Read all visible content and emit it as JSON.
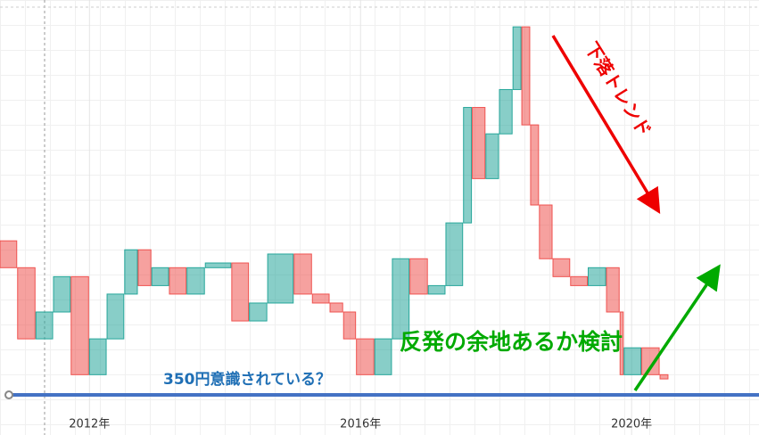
{
  "chart_data": {
    "type": "candlestick",
    "x": [
      2010.68,
      2010.94,
      2011.21,
      2011.47,
      2011.73,
      2012.0,
      2012.26,
      2012.52,
      2012.72,
      2012.92,
      2013.18,
      2013.44,
      2013.71,
      2014.1,
      2014.36,
      2014.63,
      2015.02,
      2015.29,
      2015.55,
      2015.75,
      2015.94,
      2016.21,
      2016.47,
      2016.73,
      2017.0,
      2017.26,
      2017.52,
      2017.65,
      2017.85,
      2018.05,
      2018.25,
      2018.38,
      2018.51,
      2018.64,
      2018.84,
      2019.1,
      2019.36,
      2019.63,
      2019.83,
      2019.89,
      2020.15,
      2020.42,
      2020.55
    ],
    "values": [
      677,
      620,
      469,
      526,
      601,
      393,
      469,
      564,
      658,
      582,
      620,
      564,
      620,
      630,
      507,
      545,
      649,
      564,
      545,
      526,
      469,
      393,
      469,
      639,
      564,
      582,
      715,
      960,
      809,
      904,
      998,
      1131,
      923,
      753,
      639,
      601,
      582,
      620,
      526,
      393,
      450,
      393,
      384
    ],
    "up_color": "#26a69a",
    "down_color": "#ef5350",
    "xlim": [
      2010.68,
      2021.88
    ],
    "ylim": [
      265,
      1188
    ],
    "xticks": [
      {
        "value": 2012,
        "label": "2012年"
      },
      {
        "value": 2016,
        "label": "2016年"
      },
      {
        "value": 2020,
        "label": "2020年"
      }
    ],
    "hline": {
      "value": 350,
      "label": "350円意識されている？",
      "color": "#4472c4"
    },
    "annotations": [
      "下落トレンド",
      "反発の余地あるか検討"
    ]
  }
}
